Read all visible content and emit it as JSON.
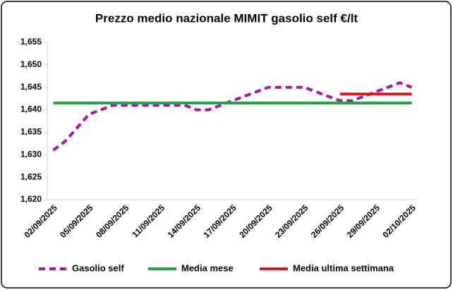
{
  "chart_data": {
    "type": "line",
    "title": "Prezzo medio nazionale MIMIT gasolio self €/lt",
    "categories": [
      "02/09/2025",
      null,
      null,
      "05/09/2025",
      null,
      null,
      "08/09/2025",
      null,
      null,
      "11/09/2025",
      null,
      null,
      "14/09/2025",
      null,
      null,
      "17/09/2025",
      null,
      null,
      "20/09/2025",
      null,
      null,
      "23/09/2025",
      null,
      null,
      "26/09/2025",
      null,
      null,
      "29/09/2025",
      null,
      null,
      "02/10/2025"
    ],
    "series": [
      {
        "name": "Gasolio self",
        "color": "#a5169c",
        "dash": true,
        "values": [
          1.631,
          1.633,
          1.636,
          1.639,
          1.64,
          1.641,
          1.641,
          1.641,
          1.641,
          1.641,
          1.641,
          1.641,
          1.64,
          1.64,
          1.641,
          1.642,
          1.643,
          1.644,
          1.645,
          1.645,
          1.645,
          1.645,
          1.644,
          1.643,
          1.642,
          1.642,
          1.643,
          1.644,
          1.645,
          1.646,
          1.645
        ]
      },
      {
        "name": "Media mese",
        "color": "#1ea64a",
        "dash": false,
        "values": [
          1.6415,
          1.6415,
          1.6415,
          1.6415,
          1.6415,
          1.6415,
          1.6415,
          1.6415,
          1.6415,
          1.6415,
          1.6415,
          1.6415,
          1.6415,
          1.6415,
          1.6415,
          1.6415,
          1.6415,
          1.6415,
          1.6415,
          1.6415,
          1.6415,
          1.6415,
          1.6415,
          1.6415,
          1.6415,
          1.6415,
          1.6415,
          1.6415,
          1.6415,
          1.6415,
          1.6415
        ]
      },
      {
        "name": "Media ultima settimana",
        "color": "#e0141e",
        "dash": false,
        "values": [
          null,
          null,
          null,
          null,
          null,
          null,
          null,
          null,
          null,
          null,
          null,
          null,
          null,
          null,
          null,
          null,
          null,
          null,
          null,
          null,
          null,
          null,
          null,
          null,
          1.6435,
          1.6435,
          1.6435,
          1.6435,
          1.6435,
          1.6435,
          1.6435
        ]
      }
    ],
    "ylim": [
      1.62,
      1.655
    ],
    "yticks": [
      {
        "value": 1.62,
        "label": "1,620"
      },
      {
        "value": 1.625,
        "label": "1,625"
      },
      {
        "value": 1.63,
        "label": "1,630"
      },
      {
        "value": 1.635,
        "label": "1,635"
      },
      {
        "value": 1.64,
        "label": "1,640"
      },
      {
        "value": 1.645,
        "label": "1,645"
      },
      {
        "value": 1.65,
        "label": "1,650"
      },
      {
        "value": 1.655,
        "label": "1,655"
      }
    ],
    "grid": false
  }
}
